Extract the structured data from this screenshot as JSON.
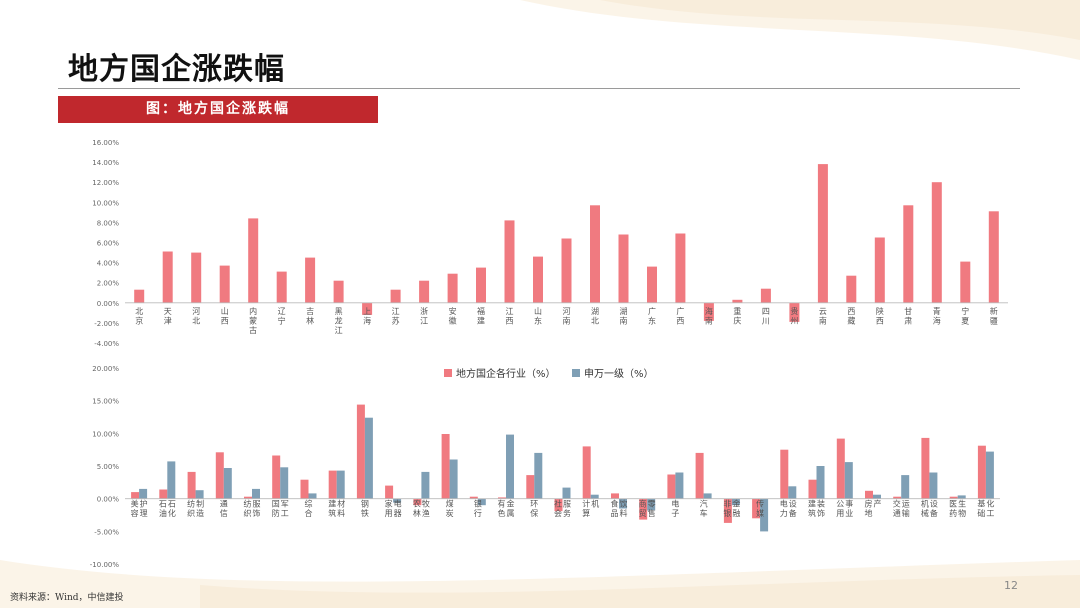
{
  "page": {
    "title": "地方国企涨跌幅",
    "banner": "图：地方国企涨跌幅",
    "source": "资料来源：Wind，中信建投",
    "page_number": "12"
  },
  "colors": {
    "accent_red": "#c0282d",
    "bar_pink": "#f07a80",
    "bar_blue": "#7f9fb5"
  },
  "chart_data": [
    {
      "type": "bar",
      "title": "",
      "categories": [
        "北京",
        "天津",
        "河北",
        "山西",
        "内蒙古",
        "辽宁",
        "吉林",
        "黑龙江",
        "上海",
        "江苏",
        "浙江",
        "安徽",
        "福建",
        "江西",
        "山东",
        "河南",
        "湖北",
        "湖南",
        "广东",
        "广西",
        "海南",
        "重庆",
        "四川",
        "贵州",
        "云南",
        "西藏",
        "陕西",
        "甘肃",
        "青海",
        "宁夏",
        "新疆"
      ],
      "values": [
        1.3,
        5.1,
        5.0,
        3.7,
        8.4,
        3.1,
        4.5,
        2.2,
        -1.2,
        1.3,
        2.2,
        2.9,
        3.5,
        8.2,
        4.6,
        6.4,
        9.7,
        6.8,
        3.6,
        6.9,
        -1.8,
        0.3,
        1.4,
        -1.9,
        13.8,
        2.7,
        6.5,
        9.7,
        12.0,
        4.1,
        9.1
      ],
      "ylim": [
        -4,
        16
      ],
      "yticks": [
        "-4.00%",
        "-2.00%",
        "0.00%",
        "2.00%",
        "4.00%",
        "6.00%",
        "8.00%",
        "10.00%",
        "12.00%",
        "14.00%",
        "16.00%"
      ],
      "grid": false
    },
    {
      "type": "bar",
      "title": "",
      "categories": [
        "美容护理",
        "石油石化",
        "纺织制造",
        "通信",
        "纺织服饰",
        "国防军工",
        "综合",
        "建筑材料",
        "钢铁",
        "家用电器",
        "农林牧渔",
        "煤炭",
        "银行",
        "有色金属",
        "环保",
        "社会服务",
        "计算机",
        "食品饮料",
        "商贸零售",
        "电子",
        "汽车",
        "非银金融",
        "传媒",
        "电力设备",
        "建筑装饰",
        "公用事业",
        "房地产",
        "交通运输",
        "机械设备",
        "医药生物",
        "基础化工"
      ],
      "series": [
        {
          "name": "地方国企各行业（%）",
          "values": [
            1.0,
            1.4,
            4.1,
            7.1,
            0.3,
            6.6,
            2.9,
            4.3,
            14.4,
            2.0,
            -1.0,
            9.9,
            0.3,
            0.2,
            3.6,
            -1.9,
            8.0,
            0.8,
            -3.2,
            3.7,
            7.0,
            -3.7,
            -3.0,
            7.5,
            2.9,
            9.2,
            1.2,
            0.3,
            9.3,
            0.3,
            8.1
          ]
        },
        {
          "name": "申万一级（%）",
          "values": [
            1.5,
            5.7,
            1.3,
            4.7,
            1.5,
            4.8,
            0.8,
            4.3,
            12.4,
            -0.6,
            4.1,
            6.0,
            -1.0,
            9.8,
            7.0,
            1.7,
            0.6,
            -1.5,
            -1.8,
            4.0,
            0.8,
            -1.0,
            -5.0,
            1.9,
            5.0,
            5.6,
            0.6,
            3.6,
            4.0,
            0.5,
            7.2
          ]
        }
      ],
      "ylim": [
        -10,
        20
      ],
      "yticks": [
        "-10.00%",
        "-5.00%",
        "0.00%",
        "5.00%",
        "10.00%",
        "15.00%",
        "20.00%"
      ],
      "legend": "top-center",
      "grid": false
    }
  ]
}
